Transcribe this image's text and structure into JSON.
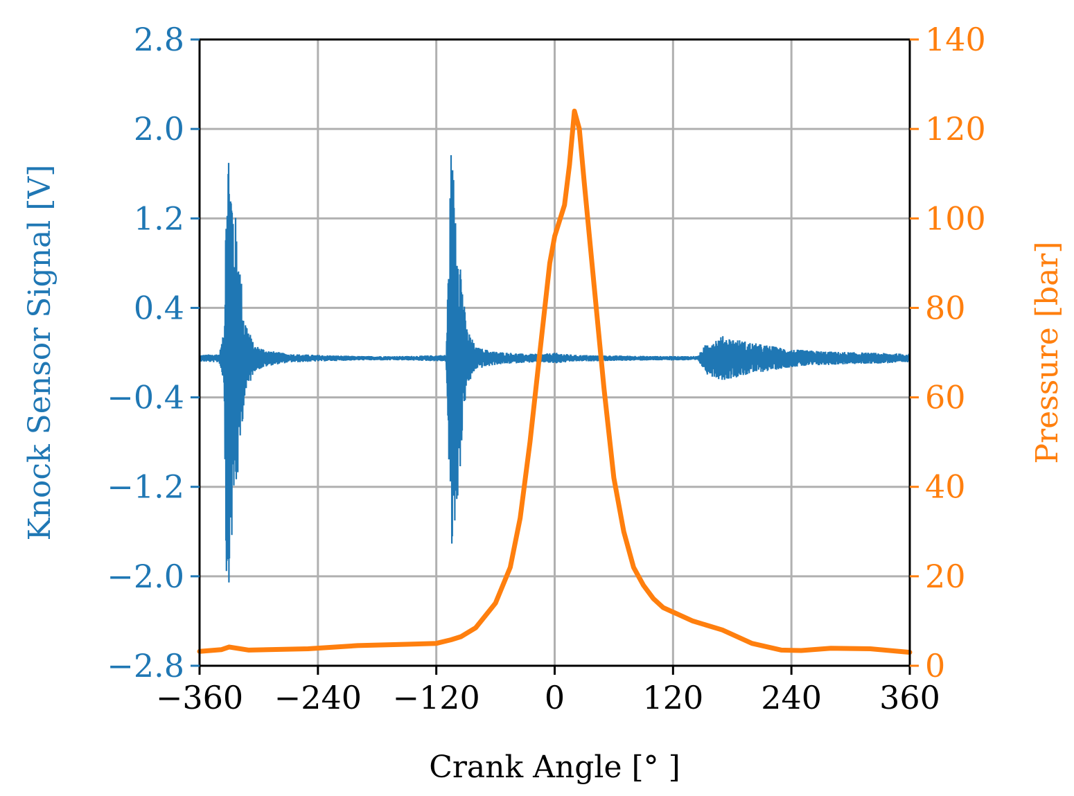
{
  "chart_data": {
    "type": "line",
    "xlabel": "Crank Angle [° ]",
    "ylabel_left": "Knock Sensor Signal [V]",
    "ylabel_right": "Pressure [bar]",
    "xlim": [
      -360,
      360
    ],
    "ylim_left": [
      -2.8,
      2.8
    ],
    "ylim_right": [
      0,
      140
    ],
    "x_ticks": [
      -360,
      -240,
      -120,
      0,
      120,
      240,
      360
    ],
    "x_tick_labels": [
      "−360",
      "−240",
      "−120",
      "0",
      "120",
      "240",
      "360"
    ],
    "y_left_ticks": [
      2.8,
      2.0,
      1.2,
      0.4,
      -0.4,
      -1.2,
      -2.0,
      -2.8
    ],
    "y_left_tick_labels": [
      "2.8",
      "2.0",
      "1.2",
      "0.4",
      "−0.4",
      "−1.2",
      "−2.0",
      "−2.8"
    ],
    "y_right_ticks": [
      140,
      120,
      100,
      80,
      60,
      40,
      20,
      0
    ],
    "y_right_tick_labels": [
      "140",
      "120",
      "100",
      "80",
      "60",
      "40",
      "20",
      "0"
    ],
    "grid": true,
    "colors": {
      "knock": "#1f77b4",
      "pressure": "#ff7f0e",
      "grid": "#b0b0b0",
      "axes": "#000000"
    },
    "series": [
      {
        "axis": "left",
        "envelope": [
          [
            -360,
            0.03
          ],
          [
            -340,
            0.04
          ],
          [
            -335,
            0.25
          ],
          [
            -333,
            2.1
          ],
          [
            -330,
            2.0
          ],
          [
            -325,
            1.4
          ],
          [
            -320,
            1.0
          ],
          [
            -315,
            0.4
          ],
          [
            -305,
            0.12
          ],
          [
            -290,
            0.07
          ],
          [
            -270,
            0.04
          ],
          [
            -240,
            0.03
          ],
          [
            -200,
            0.02
          ],
          [
            -150,
            0.02
          ],
          [
            -110,
            0.03
          ],
          [
            -105,
            1.9
          ],
          [
            -100,
            1.5
          ],
          [
            -95,
            0.9
          ],
          [
            -90,
            0.3
          ],
          [
            -80,
            0.1
          ],
          [
            -60,
            0.06
          ],
          [
            -30,
            0.04
          ],
          [
            -10,
            0.04
          ],
          [
            0,
            0.05
          ],
          [
            20,
            0.03
          ],
          [
            100,
            0.02
          ],
          [
            145,
            0.02
          ],
          [
            155,
            0.15
          ],
          [
            170,
            0.2
          ],
          [
            200,
            0.14
          ],
          [
            240,
            0.08
          ],
          [
            280,
            0.06
          ],
          [
            360,
            0.04
          ]
        ]
      },
      {
        "axis": "right",
        "points": [
          [
            -360,
            3.2
          ],
          [
            -338,
            3.6
          ],
          [
            -330,
            4.2
          ],
          [
            -310,
            3.5
          ],
          [
            -250,
            3.8
          ],
          [
            -200,
            4.5
          ],
          [
            -150,
            4.8
          ],
          [
            -120,
            5.0
          ],
          [
            -105,
            5.8
          ],
          [
            -95,
            6.5
          ],
          [
            -80,
            8.5
          ],
          [
            -60,
            14
          ],
          [
            -45,
            22
          ],
          [
            -35,
            33
          ],
          [
            -25,
            50
          ],
          [
            -15,
            70
          ],
          [
            -5,
            90
          ],
          [
            0,
            96
          ],
          [
            10,
            103
          ],
          [
            15,
            112
          ],
          [
            20,
            124
          ],
          [
            25,
            120
          ],
          [
            30,
            108
          ],
          [
            40,
            85
          ],
          [
            50,
            62
          ],
          [
            60,
            42
          ],
          [
            70,
            30
          ],
          [
            80,
            22
          ],
          [
            90,
            18
          ],
          [
            100,
            15
          ],
          [
            110,
            13
          ],
          [
            120,
            12
          ],
          [
            140,
            10
          ],
          [
            170,
            8
          ],
          [
            200,
            5
          ],
          [
            230,
            3.5
          ],
          [
            250,
            3.4
          ],
          [
            280,
            3.9
          ],
          [
            320,
            3.8
          ],
          [
            360,
            3.0
          ]
        ]
      }
    ]
  }
}
